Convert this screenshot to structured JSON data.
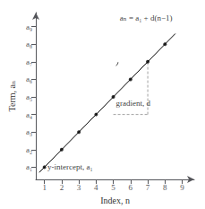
{
  "chart_data": {
    "type": "line",
    "xlabel": "Index, n",
    "ylabel": "Term, aₙ",
    "xlim": [
      0.5,
      9.7
    ],
    "ylim": [
      0.3,
      9.8
    ],
    "xticks": [
      1,
      2,
      3,
      4,
      5,
      6,
      7,
      8,
      9
    ],
    "yticks": [
      {
        "value": 1,
        "label": "a₁"
      },
      {
        "value": 2,
        "label": "a₂"
      },
      {
        "value": 3,
        "label": "a₃"
      },
      {
        "value": 4,
        "label": "a₄"
      },
      {
        "value": 5,
        "label": "a₅"
      },
      {
        "value": 6,
        "label": "a₆"
      },
      {
        "value": 7,
        "label": "a₇"
      },
      {
        "value": 8,
        "label": "a₈"
      },
      {
        "value": 9,
        "label": "a₉"
      }
    ],
    "grid": false,
    "series": [
      {
        "type": "line",
        "x": [
          0.7,
          8.6
        ],
        "values": [
          0.7,
          8.6
        ],
        "color": "#000000",
        "line_style": "solid"
      },
      {
        "type": "scatter",
        "x": [
          1,
          2,
          3,
          4,
          5,
          6,
          7,
          8
        ],
        "values": [
          1,
          2,
          3,
          4,
          5,
          6,
          7,
          8
        ],
        "color": "#000000",
        "marker": "circle"
      },
      {
        "type": "line",
        "x": [
          5,
          7
        ],
        "values": [
          4,
          4
        ],
        "color": "#888888",
        "line_style": "dashed"
      },
      {
        "type": "line",
        "x": [
          7,
          7
        ],
        "values": [
          4,
          7
        ],
        "color": "#888888",
        "line_style": "dashed"
      }
    ],
    "arc": {
      "center_x": 5,
      "center_y": 7,
      "width": 0.55,
      "height": 0.55,
      "theta1": -55,
      "theta2": 0,
      "color": "#000000"
    },
    "annotations": [
      {
        "text": "aₙ = a₁ + d(n−1)",
        "x": 6.9,
        "y": 9.5,
        "color": "#000000"
      },
      {
        "text": "gradient, d",
        "x": 5.15,
        "y": 4.85,
        "color": "#000000"
      },
      {
        "text": "y-intercept, a₁",
        "x": 1.18,
        "y": 1.0,
        "color": "#000000"
      }
    ]
  }
}
